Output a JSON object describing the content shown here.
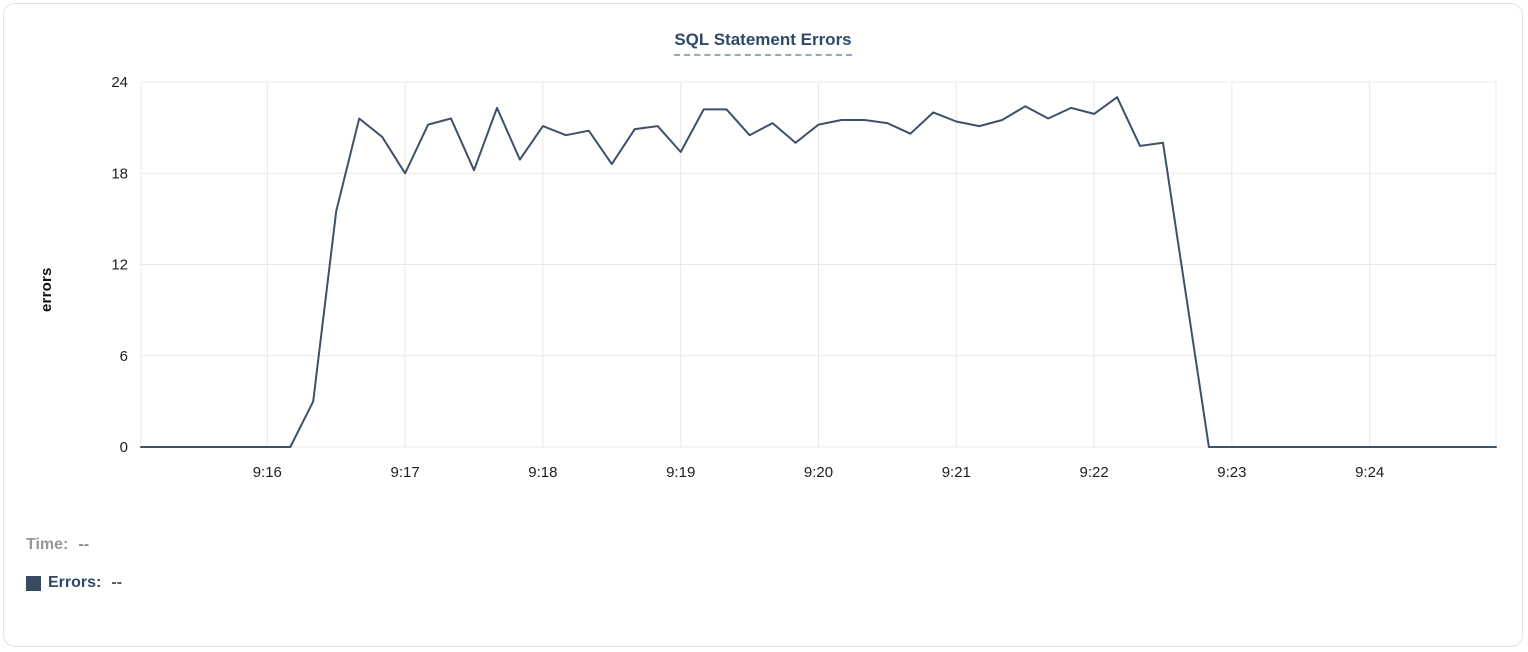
{
  "chart_data": {
    "type": "line",
    "title": "SQL Statement Errors",
    "ylabel": "errors",
    "ylim": [
      0,
      24
    ],
    "yticks": [
      0,
      6,
      12,
      18,
      24
    ],
    "xticks": [
      "9:16",
      "9:17",
      "9:18",
      "9:19",
      "9:20",
      "9:21",
      "9:22",
      "9:23",
      "9:24"
    ],
    "grid": true,
    "legend_position": "bottom-left",
    "line_color": "#3f5069",
    "series_name": "Errors",
    "points": [
      [
        "9:15:05",
        0
      ],
      [
        "9:15:10",
        0
      ],
      [
        "9:15:20",
        0
      ],
      [
        "9:15:30",
        0
      ],
      [
        "9:15:40",
        0
      ],
      [
        "9:15:50",
        0
      ],
      [
        "9:16:00",
        0
      ],
      [
        "9:16:10",
        0
      ],
      [
        "9:16:20",
        3
      ],
      [
        "9:16:30",
        15.5
      ],
      [
        "9:16:40",
        21.6
      ],
      [
        "9:16:50",
        20.4
      ],
      [
        "9:17:00",
        18.0
      ],
      [
        "9:17:10",
        21.2
      ],
      [
        "9:17:20",
        21.6
      ],
      [
        "9:17:30",
        18.2
      ],
      [
        "9:17:40",
        22.3
      ],
      [
        "9:17:50",
        18.9
      ],
      [
        "9:18:00",
        21.1
      ],
      [
        "9:18:10",
        20.5
      ],
      [
        "9:18:20",
        20.8
      ],
      [
        "9:18:30",
        18.6
      ],
      [
        "9:18:40",
        20.9
      ],
      [
        "9:18:50",
        21.1
      ],
      [
        "9:19:00",
        19.4
      ],
      [
        "9:19:10",
        22.2
      ],
      [
        "9:19:20",
        22.2
      ],
      [
        "9:19:30",
        20.5
      ],
      [
        "9:19:40",
        21.3
      ],
      [
        "9:19:50",
        20.0
      ],
      [
        "9:20:00",
        21.2
      ],
      [
        "9:20:10",
        21.5
      ],
      [
        "9:20:20",
        21.5
      ],
      [
        "9:20:30",
        21.3
      ],
      [
        "9:20:40",
        20.6
      ],
      [
        "9:20:50",
        22.0
      ],
      [
        "9:21:00",
        21.4
      ],
      [
        "9:21:10",
        21.1
      ],
      [
        "9:21:20",
        21.5
      ],
      [
        "9:21:30",
        22.4
      ],
      [
        "9:21:40",
        21.6
      ],
      [
        "9:21:50",
        22.3
      ],
      [
        "9:22:00",
        21.9
      ],
      [
        "9:22:10",
        23.0
      ],
      [
        "9:22:20",
        19.8
      ],
      [
        "9:22:30",
        20.0
      ],
      [
        "9:22:40",
        10.0
      ],
      [
        "9:22:50",
        0
      ],
      [
        "9:23:00",
        0
      ],
      [
        "9:23:10",
        0
      ],
      [
        "9:23:20",
        0
      ],
      [
        "9:23:30",
        0
      ],
      [
        "9:23:40",
        0
      ],
      [
        "9:23:50",
        0
      ],
      [
        "9:24:00",
        0
      ],
      [
        "9:24:10",
        0
      ],
      [
        "9:24:20",
        0
      ],
      [
        "9:24:30",
        0
      ],
      [
        "9:24:40",
        0
      ],
      [
        "9:24:50",
        0
      ],
      [
        "9:24:55",
        0
      ]
    ]
  },
  "readout": {
    "time_label": "Time:",
    "time_value": "--",
    "errors_label": "Errors:",
    "errors_value": "--",
    "swatch_color": "#3b4a63"
  }
}
